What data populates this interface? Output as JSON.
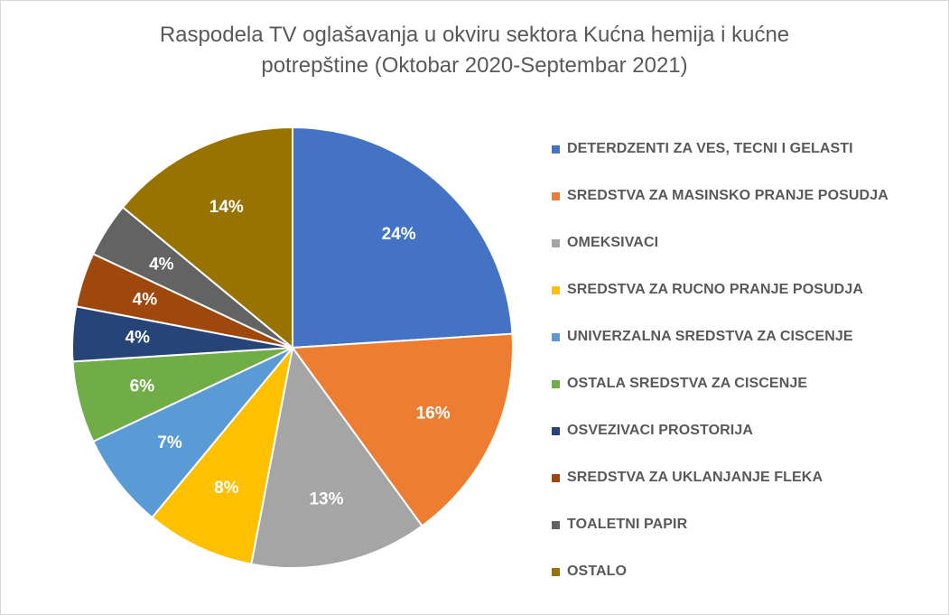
{
  "chart_data": {
    "type": "pie",
    "title_lines": [
      "Raspodela TV oglašavanja u okviru sektora Kućna hemija i kućne",
      "potrepštine (Oktobar 2020-Septembar 2021)"
    ],
    "legend_position": "right",
    "categories": [
      "DETERDZENTI ZA VES, TECNI I GELASTI",
      "SREDSTVA ZA MASINSKO PRANJE POSUDJA",
      "OMEKSIVACI",
      "SREDSTVA ZA RUCNO PRANJE POSUDJA",
      "UNIVERZALNA SREDSTVA ZA CISCENJE",
      "OSTALA SREDSTVA ZA CISCENJE",
      "OSVEZIVACI PROSTORIJA",
      "SREDSTVA ZA UKLANJANJE FLEKA",
      "TOALETNI PAPIR",
      "OSTALO"
    ],
    "values": [
      24,
      16,
      13,
      8,
      7,
      6,
      4,
      4,
      4,
      14
    ],
    "data_labels": [
      "24%",
      "16%",
      "13%",
      "8%",
      "7%",
      "6%",
      "4%",
      "4%",
      "4%",
      "14%"
    ],
    "colors": [
      "#4472C4",
      "#ED7D31",
      "#A5A5A5",
      "#FFC000",
      "#5B9BD5",
      "#70AD47",
      "#264478",
      "#9E480E",
      "#636363",
      "#997300"
    ]
  }
}
